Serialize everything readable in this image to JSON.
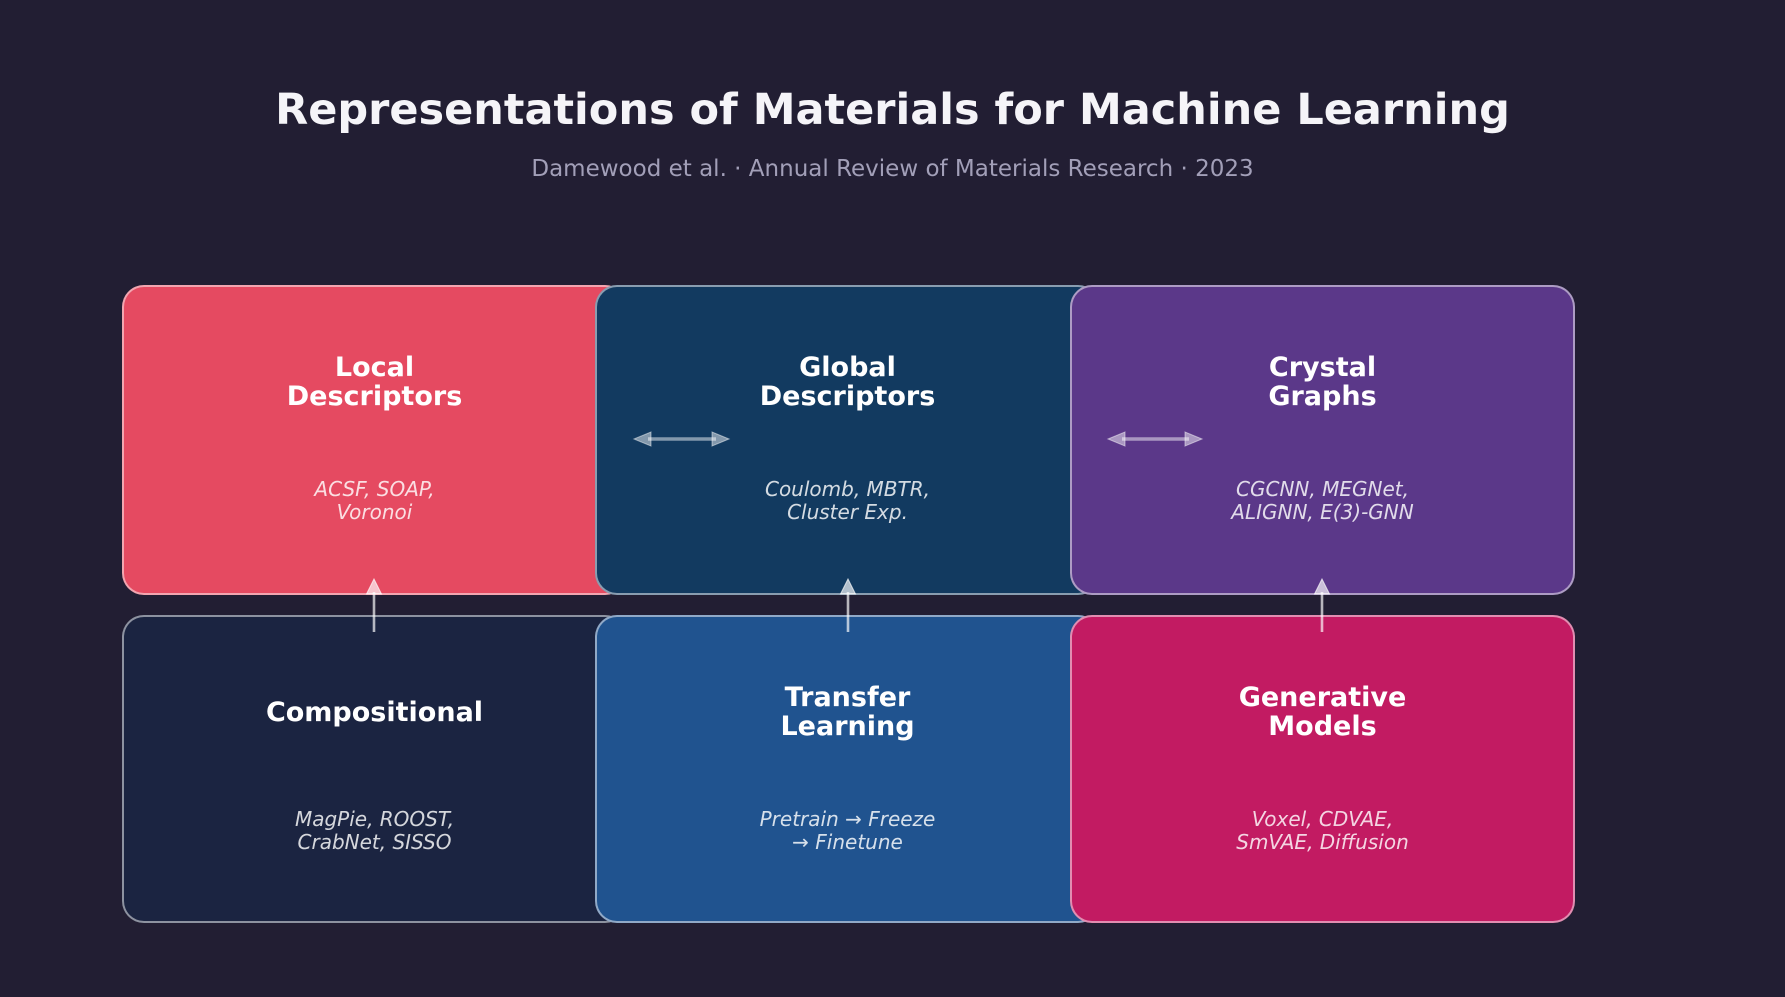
{
  "header": {
    "title": "Representations of Materials for Machine Learning",
    "subtitle": "Damewood et al. · Annual Review of Materials Research · 2023"
  },
  "palette": {
    "background": "#221E33",
    "card_border": "rgba(255,255,255,0.5)",
    "title_color": "#F5F4F8",
    "subtitle_color": "#A29FB8",
    "vertical_arrow": "rgba(255,255,255,0.68)",
    "horizontal_arrow": "rgba(255,255,255,0.48)"
  },
  "cards": [
    {
      "id": "local-descriptors",
      "title_lines": [
        "Local",
        "Descriptors"
      ],
      "methods_lines": [
        "ACSF, SOAP,",
        "Voronoi"
      ],
      "color": "#E54A61"
    },
    {
      "id": "global-descriptors",
      "title_lines": [
        "Global",
        "Descriptors"
      ],
      "methods_lines": [
        "Coulomb, MBTR,",
        "Cluster Exp."
      ],
      "color": "#123A60"
    },
    {
      "id": "crystal-graphs",
      "title_lines": [
        "Crystal",
        "Graphs"
      ],
      "methods_lines": [
        "CGCNN, MEGNet,",
        "ALIGNN, E(3)-GNN"
      ],
      "color": "#5B3889"
    },
    {
      "id": "compositional",
      "title_lines": [
        "Compositional"
      ],
      "methods_lines": [
        "MagPie, ROOST,",
        "CrabNet, SISSO"
      ],
      "color": "#1B2441"
    },
    {
      "id": "transfer-learning",
      "title_lines": [
        "Transfer",
        "Learning"
      ],
      "methods_lines": [
        "Pretrain → Freeze",
        "→ Finetune"
      ],
      "color": "#20538F"
    },
    {
      "id": "generative-models",
      "title_lines": [
        "Generative",
        "Models"
      ],
      "methods_lines": [
        "Voxel, CDVAE,",
        "SmVAE, Diffusion"
      ],
      "color": "#C21B62"
    }
  ],
  "connections": [
    {
      "type": "bidirectional",
      "between": [
        "Local Descriptors",
        "Global Descriptors"
      ]
    },
    {
      "type": "bidirectional",
      "between": [
        "Global Descriptors",
        "Crystal Graphs"
      ]
    },
    {
      "type": "upward",
      "from": "Compositional",
      "to": "Local Descriptors"
    },
    {
      "type": "upward",
      "from": "Transfer Learning",
      "to": "Global Descriptors"
    },
    {
      "type": "upward",
      "from": "Generative Models",
      "to": "Crystal Graphs"
    }
  ]
}
